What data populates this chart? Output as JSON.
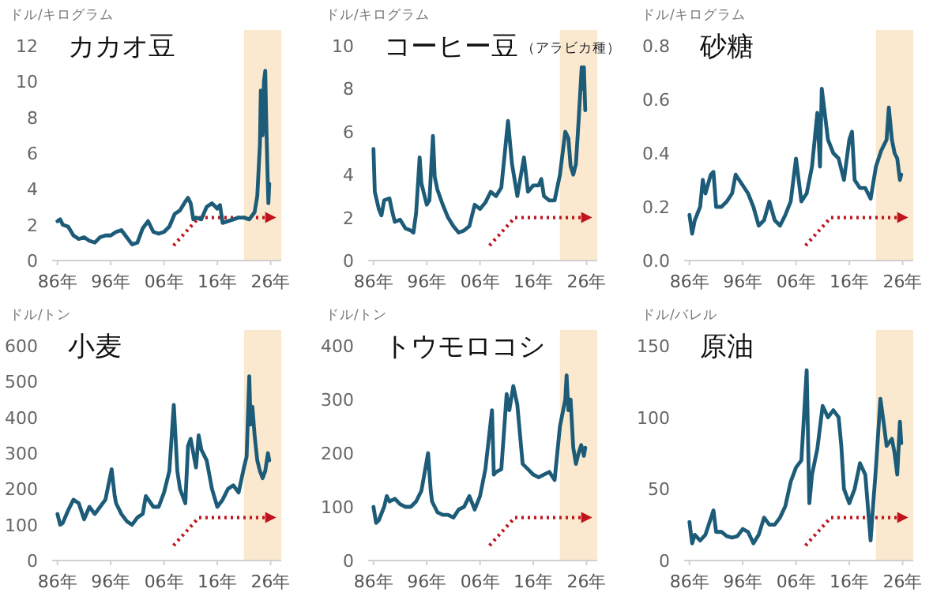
{
  "chart_data": [
    {
      "type": "line",
      "title": "カカオ豆",
      "ylabel": "ドル/キログラム",
      "xlim": [
        "1985",
        "2028"
      ],
      "ylim": [
        0,
        12
      ],
      "yticks": [
        0,
        2,
        4,
        6,
        8,
        10,
        12
      ],
      "xticks": [
        {
          "value": "1986",
          "label": "86年"
        },
        {
          "value": "1996",
          "label": "96年"
        },
        {
          "value": "2006",
          "label": "06年"
        },
        {
          "value": "2016",
          "label": "16年"
        },
        {
          "value": "2026",
          "label": "26年"
        }
      ],
      "bands": [
        {
          "axis": "x",
          "from": "2021",
          "to": "2028",
          "color": "#fbe9cf"
        }
      ],
      "x": [
        "1986",
        "1986-07",
        "1987",
        "1988",
        "1989",
        "1990",
        "1991",
        "1992",
        "1993",
        "1994",
        "1995",
        "1996",
        "1997",
        "1998",
        "1999",
        "2000",
        "2001",
        "2002",
        "2003",
        "2004",
        "2005",
        "2006",
        "2007",
        "2008",
        "2009",
        "2010",
        "2010-07",
        "2011",
        "2011-07",
        "2012",
        "2013",
        "2014",
        "2015",
        "2016",
        "2016-07",
        "2017",
        "2018",
        "2019",
        "2020",
        "2021",
        "2022",
        "2023",
        "2023-07",
        "2024",
        "2024-03",
        "2024-07",
        "2024-10",
        "2025",
        "2025-03",
        "2025-06",
        "2025-08",
        "2025-10"
      ],
      "series": [
        {
          "color": "#1d5c78",
          "values": [
            2.2,
            2.3,
            2.0,
            1.9,
            1.4,
            1.2,
            1.3,
            1.1,
            1.0,
            1.3,
            1.4,
            1.4,
            1.6,
            1.7,
            1.3,
            0.9,
            1.0,
            1.8,
            2.2,
            1.6,
            1.5,
            1.6,
            1.9,
            2.6,
            2.8,
            3.3,
            3.5,
            3.2,
            2.3,
            2.4,
            2.3,
            3.0,
            3.2,
            2.9,
            3.1,
            2.1,
            2.2,
            2.3,
            2.4,
            2.4,
            2.3,
            2.7,
            3.6,
            6.5,
            9.5,
            7.0,
            10.0,
            10.6,
            8.0,
            5.0,
            3.2,
            4.3
          ]
        }
      ]
    },
    {
      "type": "line",
      "title": "コーヒー豆",
      "subtitle": "（アラビカ種）",
      "ylabel": "ドル/キログラム",
      "xlim": [
        "1985",
        "2028"
      ],
      "ylim": [
        0,
        10
      ],
      "yticks": [
        0,
        2,
        4,
        6,
        8,
        10
      ],
      "xticks": [
        {
          "value": "1986",
          "label": "86年"
        },
        {
          "value": "1996",
          "label": "96年"
        },
        {
          "value": "2006",
          "label": "06年"
        },
        {
          "value": "2016",
          "label": "16年"
        },
        {
          "value": "2026",
          "label": "26年"
        }
      ],
      "bands": [
        {
          "axis": "x",
          "from": "2021",
          "to": "2028",
          "color": "#fbe9cf"
        }
      ],
      "x": [
        "1986",
        "1986-04",
        "1987",
        "1987-07",
        "1988",
        "1989",
        "1989-07",
        "1990",
        "1991",
        "1992",
        "1993",
        "1993-07",
        "1994",
        "1994-09",
        "1995",
        "1996",
        "1996-07",
        "1997-03",
        "1997-07",
        "1998",
        "1999",
        "2000",
        "2001",
        "2002",
        "2003",
        "2004",
        "2005",
        "2006",
        "2007",
        "2008",
        "2009",
        "2010",
        "2011-04",
        "2012",
        "2013",
        "2014-04",
        "2014-08",
        "2015",
        "2016",
        "2017",
        "2017-07",
        "2018",
        "2019",
        "2020",
        "2021",
        "2022",
        "2022-08",
        "2023",
        "2023-07",
        "2024",
        "2024-07",
        "2025-02",
        "2025-04",
        "2025-07",
        "2025-10"
      ],
      "series": [
        {
          "color": "#1d5c78",
          "values": [
            5.2,
            3.2,
            2.4,
            2.1,
            2.8,
            2.9,
            2.3,
            1.8,
            1.9,
            1.5,
            1.4,
            1.3,
            2.2,
            4.8,
            3.6,
            2.6,
            2.8,
            5.8,
            3.9,
            3.3,
            2.6,
            2.0,
            1.6,
            1.3,
            1.4,
            1.6,
            2.6,
            2.4,
            2.7,
            3.2,
            3.0,
            3.4,
            6.5,
            4.5,
            3.0,
            4.8,
            4.1,
            3.2,
            3.5,
            3.5,
            3.8,
            3.0,
            2.8,
            2.8,
            4.0,
            6.0,
            5.7,
            4.4,
            4.0,
            4.5,
            6.5,
            9.0,
            8.0,
            9.0,
            7.0
          ]
        }
      ]
    },
    {
      "type": "line",
      "title": "砂糖",
      "ylabel": "ドル/キログラム",
      "xlim": [
        "1985",
        "2028"
      ],
      "ylim": [
        0,
        0.8
      ],
      "yticks": [
        {
          "value": 0,
          "label": "0.0"
        },
        0.2,
        0.4,
        0.6,
        0.8
      ],
      "xticks": [
        {
          "value": "1986",
          "label": "86年"
        },
        {
          "value": "1996",
          "label": "96年"
        },
        {
          "value": "2006",
          "label": "06年"
        },
        {
          "value": "2016",
          "label": "16年"
        },
        {
          "value": "2026",
          "label": "26年"
        }
      ],
      "bands": [
        {
          "axis": "x",
          "from": "2021",
          "to": "2028",
          "color": "#fbe9cf"
        }
      ],
      "x": [
        "1986",
        "1986-07",
        "1987",
        "1988",
        "1988-07",
        "1989",
        "1990",
        "1990-07",
        "1991",
        "1992",
        "1993",
        "1994",
        "1994-09",
        "1996",
        "1997",
        "1998",
        "1999",
        "2000",
        "2001",
        "2002",
        "2003",
        "2004",
        "2005",
        "2006",
        "2007",
        "2008",
        "2009",
        "2010",
        "2010-07",
        "2010-11",
        "2012",
        "2013",
        "2014",
        "2015",
        "2016",
        "2016-07",
        "2017",
        "2018",
        "2019",
        "2020",
        "2021",
        "2022",
        "2023",
        "2023-06",
        "2024",
        "2024-07",
        "2025",
        "2025-07",
        "2025-10"
      ],
      "series": [
        {
          "color": "#1d5c78",
          "values": [
            0.17,
            0.1,
            0.15,
            0.2,
            0.3,
            0.25,
            0.32,
            0.33,
            0.2,
            0.2,
            0.22,
            0.25,
            0.32,
            0.28,
            0.25,
            0.2,
            0.13,
            0.15,
            0.22,
            0.15,
            0.13,
            0.17,
            0.22,
            0.38,
            0.22,
            0.25,
            0.35,
            0.55,
            0.35,
            0.64,
            0.45,
            0.4,
            0.38,
            0.3,
            0.45,
            0.48,
            0.3,
            0.27,
            0.27,
            0.23,
            0.35,
            0.41,
            0.45,
            0.57,
            0.45,
            0.4,
            0.38,
            0.3,
            0.32
          ]
        }
      ]
    },
    {
      "type": "line",
      "title": "小麦",
      "ylabel": "ドル/トン",
      "xlim": [
        "1985",
        "2028"
      ],
      "ylim": [
        0,
        600
      ],
      "yticks": [
        0,
        100,
        200,
        300,
        400,
        500,
        600
      ],
      "xticks": [
        {
          "value": "1986",
          "label": "86年"
        },
        {
          "value": "1996",
          "label": "96年"
        },
        {
          "value": "2006",
          "label": "06年"
        },
        {
          "value": "2016",
          "label": "16年"
        },
        {
          "value": "2026",
          "label": "26年"
        }
      ],
      "bands": [
        {
          "axis": "x",
          "from": "2021",
          "to": "2028",
          "color": "#fbe9cf"
        }
      ],
      "x": [
        "1986",
        "1986-07",
        "1987",
        "1988",
        "1989",
        "1990",
        "1991",
        "1992",
        "1993",
        "1994",
        "1995",
        "1996-03",
        "1996-10",
        "1997",
        "1998",
        "1999",
        "2000",
        "2001",
        "2002",
        "2002-08",
        "2004",
        "2005",
        "2006",
        "2007",
        "2007-11",
        "2008-07",
        "2009",
        "2010",
        "2010-07",
        "2011",
        "2012",
        "2012-07",
        "2013",
        "2014",
        "2015",
        "2016",
        "2017",
        "2018",
        "2019",
        "2020",
        "2021",
        "2021-07",
        "2022",
        "2022-04",
        "2022-08",
        "2023",
        "2023-07",
        "2024",
        "2024-07",
        "2025",
        "2025-07",
        "2025-10"
      ],
      "series": [
        {
          "color": "#1d5c78",
          "values": [
            130,
            100,
            105,
            140,
            170,
            160,
            115,
            150,
            130,
            150,
            170,
            255,
            180,
            160,
            130,
            110,
            100,
            120,
            130,
            180,
            150,
            150,
            190,
            250,
            435,
            250,
            200,
            160,
            320,
            340,
            260,
            350,
            310,
            280,
            200,
            150,
            170,
            200,
            210,
            190,
            260,
            290,
            515,
            380,
            430,
            350,
            280,
            250,
            230,
            250,
            300,
            280
          ]
        }
      ]
    },
    {
      "type": "line",
      "title": "トウモロコシ",
      "ylabel": "ドル/トン",
      "xlim": [
        "1985",
        "2028"
      ],
      "ylim": [
        0,
        400
      ],
      "yticks": [
        0,
        100,
        200,
        300,
        400
      ],
      "xticks": [
        {
          "value": "1986",
          "label": "86年"
        },
        {
          "value": "1996",
          "label": "96年"
        },
        {
          "value": "2006",
          "label": "06年"
        },
        {
          "value": "2016",
          "label": "16年"
        },
        {
          "value": "2026",
          "label": "26年"
        }
      ],
      "bands": [
        {
          "axis": "x",
          "from": "2021",
          "to": "2028",
          "color": "#fbe9cf"
        }
      ],
      "x": [
        "1986",
        "1986-07",
        "1987",
        "1988",
        "1988-07",
        "1989",
        "1990",
        "1991",
        "1992",
        "1993",
        "1994",
        "1995",
        "1996-04",
        "1996-10",
        "1997",
        "1998",
        "1999",
        "2000",
        "2001",
        "2002",
        "2003",
        "2004",
        "2005",
        "2006",
        "2007",
        "2008-04",
        "2008-08",
        "2009",
        "2010",
        "2011",
        "2011-07",
        "2012-04",
        "2013",
        "2014",
        "2015",
        "2016",
        "2017",
        "2018",
        "2019",
        "2020",
        "2021",
        "2022",
        "2022-04",
        "2022-08",
        "2023",
        "2023-07",
        "2024",
        "2024-07",
        "2025",
        "2025-07",
        "2025-10"
      ],
      "series": [
        {
          "color": "#1d5c78",
          "values": [
            100,
            70,
            75,
            100,
            120,
            110,
            115,
            105,
            100,
            100,
            110,
            130,
            200,
            130,
            110,
            90,
            85,
            85,
            80,
            95,
            100,
            120,
            95,
            120,
            170,
            280,
            160,
            165,
            170,
            310,
            280,
            325,
            290,
            180,
            170,
            160,
            155,
            160,
            165,
            150,
            250,
            300,
            345,
            280,
            300,
            210,
            180,
            200,
            215,
            195,
            210
          ]
        }
      ]
    },
    {
      "type": "line",
      "title": "原油",
      "ylabel": "ドル/バレル",
      "xlim": [
        "1985",
        "2028"
      ],
      "ylim": [
        0,
        150
      ],
      "yticks": [
        0,
        50,
        100,
        150
      ],
      "xticks": [
        {
          "value": "1986",
          "label": "86年"
        },
        {
          "value": "1996",
          "label": "96年"
        },
        {
          "value": "2006",
          "label": "06年"
        },
        {
          "value": "2016",
          "label": "16年"
        },
        {
          "value": "2026",
          "label": "26年"
        }
      ],
      "bands": [
        {
          "axis": "x",
          "from": "2021",
          "to": "2028",
          "color": "#fbe9cf"
        }
      ],
      "x": [
        "1986",
        "1986-07",
        "1987",
        "1988",
        "1989",
        "1990-07",
        "1991",
        "1992",
        "1993",
        "1994",
        "1995",
        "1996",
        "1997",
        "1998",
        "1999",
        "2000",
        "2001",
        "2002",
        "2003",
        "2004",
        "2005",
        "2006",
        "2007",
        "2008",
        "2008-07",
        "2009",
        "2010",
        "2011",
        "2012",
        "2013",
        "2014",
        "2014-07",
        "2015",
        "2016",
        "2017",
        "2018",
        "2019",
        "2020",
        "2020-07",
        "2021",
        "2021-11",
        "2022-07",
        "2023",
        "2024",
        "2024-07",
        "2025",
        "2025-07",
        "2025-10"
      ],
      "series": [
        {
          "color": "#1d5c78",
          "values": [
            27,
            12,
            18,
            14,
            18,
            35,
            20,
            20,
            17,
            16,
            17,
            22,
            20,
            12,
            18,
            30,
            25,
            25,
            30,
            38,
            55,
            65,
            70,
            133,
            40,
            60,
            78,
            108,
            100,
            105,
            100,
            80,
            50,
            40,
            50,
            68,
            60,
            14,
            40,
            65,
            113,
            95,
            80,
            85,
            75,
            60,
            97,
            82
          ]
        }
      ]
    }
  ]
}
